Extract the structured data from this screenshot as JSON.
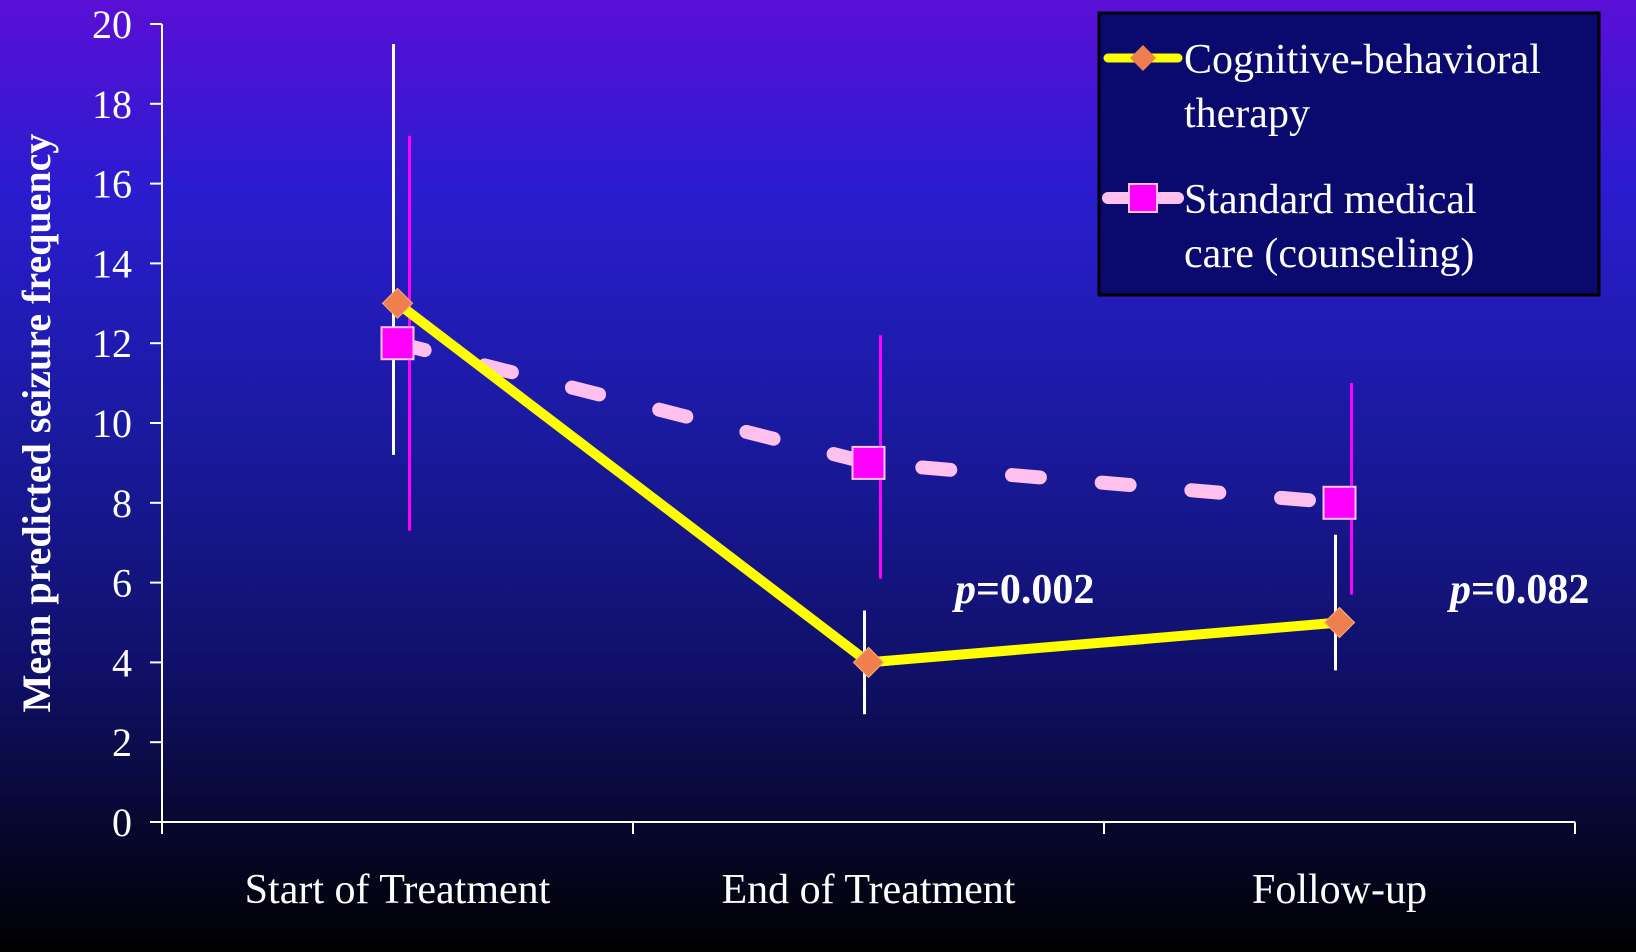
{
  "chart_data": {
    "type": "line",
    "ylabel": "Mean predicted seizure frequency",
    "xlabel": "",
    "ylim": [
      0,
      20
    ],
    "yticks": [
      "0",
      "2",
      "4",
      "6",
      "8",
      "10",
      "12",
      "14",
      "16",
      "18",
      "20"
    ],
    "categories": [
      "Start of Treatment",
      "End of Treatment",
      "Follow-up"
    ],
    "series": [
      {
        "name": "Cognitive-behavioral therapy",
        "name_lines": [
          "Cognitive-behavioral",
          "therapy"
        ],
        "values": [
          13,
          4,
          5
        ],
        "error_low": [
          9.2,
          2.7,
          3.8
        ],
        "error_high": [
          19.5,
          5.3,
          7.2
        ],
        "line_color": "#ffff00",
        "marker_color": "#f07f50",
        "marker": "diamond",
        "dash": "solid"
      },
      {
        "name": "Standard medical care (counseling)",
        "name_lines": [
          "Standard medical",
          "care (counseling)"
        ],
        "values": [
          12,
          9,
          8
        ],
        "error_low": [
          7.3,
          6.1,
          5.7
        ],
        "error_high": [
          17.2,
          12.2,
          11.0
        ],
        "line_color": "#ffc0ee",
        "marker_color": "#ff00ff",
        "marker": "square",
        "dash": "dashed"
      }
    ],
    "annotations": [
      {
        "category": 1,
        "prefix": "p",
        "text": "=0.002"
      },
      {
        "category": 2,
        "prefix": "p",
        "text": "=0.082"
      }
    ],
    "legend_position": "top-right",
    "grid": false
  }
}
